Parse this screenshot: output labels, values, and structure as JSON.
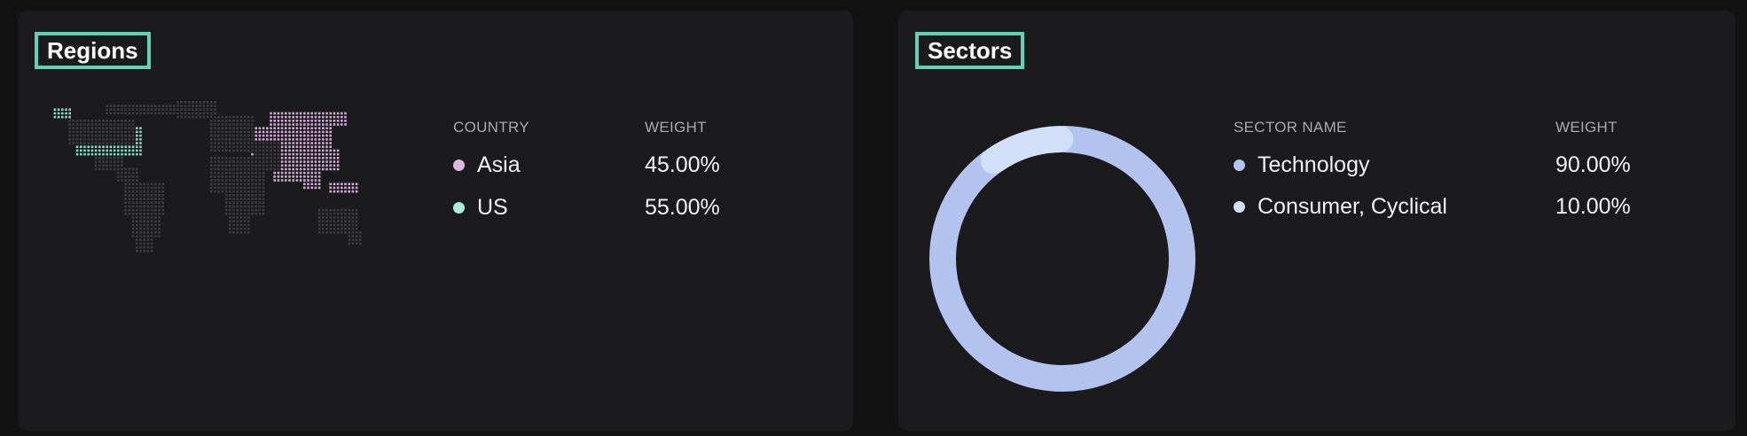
{
  "regions": {
    "title": "Regions",
    "col_country": "COUNTRY",
    "col_weight": "WEIGHT",
    "rows": [
      {
        "label": "Asia",
        "weight": "45.00%",
        "color": "#dcb8e0"
      },
      {
        "label": "US",
        "weight": "55.00%",
        "color": "#a9ecdc"
      }
    ],
    "map_colors": {
      "land": "#3b3b40",
      "asia": "#cfa7d3",
      "us": "#86d9c4"
    }
  },
  "sectors": {
    "title": "Sectors",
    "col_name": "SECTOR NAME",
    "col_weight": "WEIGHT",
    "rows": [
      {
        "label": "Technology",
        "weight": "90.00%",
        "color": "#b3c3f0"
      },
      {
        "label": "Consumer, Cyclical",
        "weight": "10.00%",
        "color": "#cfe0f8"
      }
    ]
  },
  "chart_data": {
    "type": "pie",
    "categories": [
      "Technology",
      "Consumer, Cyclical"
    ],
    "values": [
      90,
      10
    ],
    "colors": [
      "#b3c3f0",
      "#cfe0f8"
    ],
    "title": ""
  }
}
